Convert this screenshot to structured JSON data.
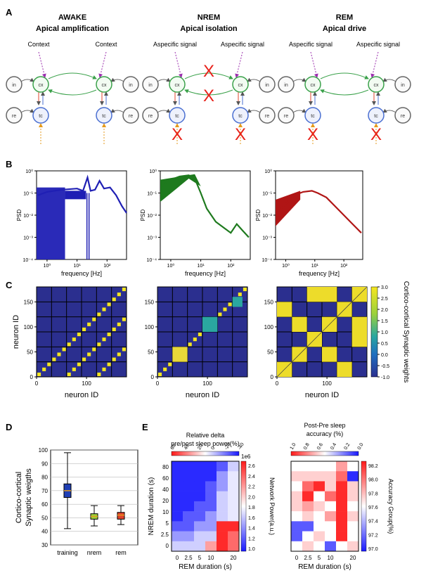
{
  "panel_letters": {
    "a": "A",
    "b": "B",
    "c": "C",
    "d": "D",
    "e": "E"
  },
  "panel_a": {
    "titles": [
      {
        "state": "AWAKE",
        "subtitle": "Apical amplification",
        "left_input": "Context",
        "right_input": "Context"
      },
      {
        "state": "NREM",
        "subtitle": "Apical isolation",
        "left_input": "Aspecific signal",
        "right_input": "Aspecific signal"
      },
      {
        "state": "REM",
        "subtitle": "Apical drive",
        "left_input": "Aspecific signal",
        "right_input": "Aspecific signal"
      }
    ],
    "node_labels": {
      "in": "in",
      "cx": "cx",
      "re": "re",
      "tc": "tc"
    },
    "cross_mark": "X"
  },
  "panel_b": {
    "ylabel": "PSD",
    "xlabel": "frequency [Hz]",
    "yticks": [
      "10⁰",
      "10⁻¹",
      "10⁻²",
      "10⁻³",
      "10⁻⁴"
    ],
    "xticks": [
      "10⁰",
      "10¹",
      "10²"
    ],
    "colors": [
      "#1f1fb4",
      "#1e7a1e",
      "#b01515"
    ]
  },
  "panel_c": {
    "xlabel": "neuron ID",
    "ylabel": "neuron ID",
    "yticks": [
      "0",
      "50",
      "100",
      "150"
    ],
    "xticks": [
      "0",
      "100"
    ],
    "colorbar_ticks": [
      "3.0",
      "2.5",
      "2.0",
      "1.5",
      "1.0",
      "0.5",
      "0.0",
      "-0.5",
      "-1.0"
    ],
    "colorbar_label": "Cortico-cortical Synaptic weights"
  },
  "panel_d": {
    "ylabel_line1": "Cortico-cortical",
    "ylabel_line2": "Synaptic weigths",
    "yticks": [
      "100",
      "90",
      "80",
      "70",
      "60",
      "50",
      "40",
      "30"
    ],
    "categories": [
      "training",
      "nrem",
      "rem"
    ],
    "chart_data": {
      "type": "box",
      "categories": [
        "training",
        "nrem",
        "rem"
      ],
      "boxes": [
        {
          "min": 42,
          "q1": 65,
          "median": 70,
          "q3": 75,
          "max": 98,
          "color": "#1f3fb4"
        },
        {
          "min": 44,
          "q1": 49,
          "median": 51,
          "q3": 53,
          "max": 59,
          "color": "#9bd13b"
        },
        {
          "min": 45,
          "q1": 49,
          "median": 52,
          "q3": 54,
          "max": 59,
          "color": "#e0432d"
        }
      ],
      "ylim": [
        30,
        100
      ]
    }
  },
  "panel_e": {
    "left": {
      "top_title_line1": "Relative delta",
      "top_title_line2": "pre/post sleep power(%)",
      "top_ticks": [
        "60",
        "40",
        "20",
        "0",
        "-20",
        "-40"
      ],
      "ylabel": "NREM duration (s)",
      "xlabel": "REM duration (s)",
      "yticks": [
        "80",
        "60",
        "40",
        "20",
        "10",
        "5",
        "2.5",
        "0"
      ],
      "xticks": [
        "0",
        "2.5",
        "5",
        "10",
        "20"
      ],
      "cbar_ticks": [
        "2.6",
        "2.4",
        "2.2",
        "2.0",
        "1.8",
        "1.6",
        "1.4",
        "1.2",
        "1.0"
      ],
      "cbar_label": "Network Power(a.u.)",
      "cbar_exp": "1e6"
    },
    "right": {
      "top_title_line1": "Post-Pre sleep",
      "top_title_line2": "accuracy (%)",
      "top_ticks": [
        "1.0",
        "0.8",
        "0.6",
        "0.4",
        "0.2",
        "0.0"
      ],
      "xlabel": "REM duration (s)",
      "xticks": [
        "0",
        "2.5",
        "5",
        "10",
        "20"
      ],
      "cbar_ticks": [
        "98.2",
        "98.0",
        "97.8",
        "97.6",
        "97.4",
        "97.2",
        "97.0"
      ],
      "cbar_label": "Accuracy Group(%)"
    }
  }
}
